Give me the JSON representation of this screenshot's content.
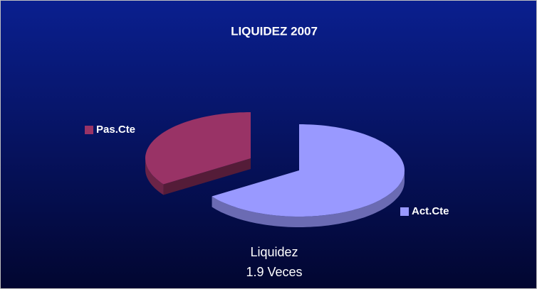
{
  "chart_data": {
    "type": "pie",
    "title": "LIQUIDEZ 2007",
    "categories": [
      "Act.Cte",
      "Pas.Cte"
    ],
    "values": [
      65.5,
      34.5
    ],
    "colors": [
      "#9999ff",
      "#993366"
    ],
    "exploded": "Pas.Cte",
    "annotation": [
      "Liquidez",
      "1.9 Veces"
    ]
  }
}
